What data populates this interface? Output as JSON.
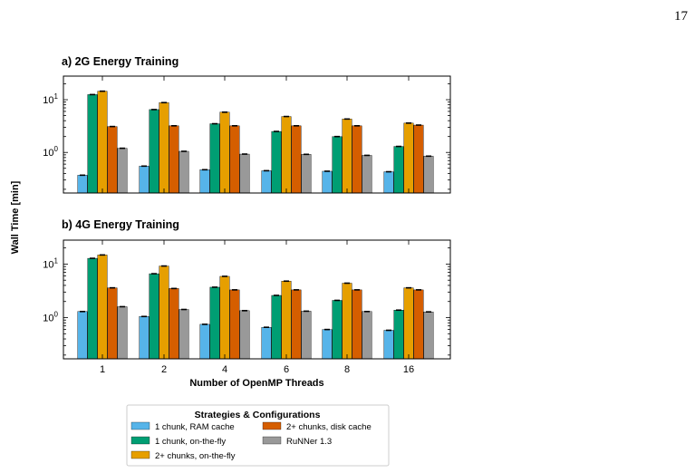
{
  "page_number": "17",
  "chart_data": [
    {
      "type": "bar",
      "title": "a) 2G Energy Training",
      "xlabel": "",
      "ylabel": "Wall Time [min]",
      "yscale": "log",
      "ylim": [
        0.17,
        28
      ],
      "yticks": [
        {
          "value": 1,
          "label": "10",
          "exp": "0"
        },
        {
          "value": 10,
          "label": "10",
          "exp": "1"
        }
      ],
      "categories": [
        "1",
        "2",
        "4",
        "6",
        "8",
        "16"
      ],
      "series": [
        {
          "name": "1 chunk, RAM cache",
          "color": "#56B4E9",
          "values": [
            0.37,
            0.55,
            0.47,
            0.45,
            0.44,
            0.43
          ]
        },
        {
          "name": "1 chunk, on-the-fly",
          "color": "#009E73",
          "values": [
            12.5,
            6.5,
            3.5,
            2.5,
            2.0,
            1.3
          ]
        },
        {
          "name": "2+ chunks, on-the-fly",
          "color": "#E69F00",
          "values": [
            14.5,
            8.8,
            5.8,
            4.8,
            4.3,
            3.6
          ]
        },
        {
          "name": "2+ chunks, disk cache",
          "color": "#D55E00",
          "values": [
            3.1,
            3.2,
            3.2,
            3.2,
            3.2,
            3.3
          ]
        },
        {
          "name": "RuNNer 1.3",
          "color": "#999999",
          "values": [
            1.2,
            1.05,
            0.93,
            0.92,
            0.88,
            0.85
          ]
        }
      ],
      "grid": false,
      "legend": "bottom"
    },
    {
      "type": "bar",
      "title": "b) 4G Energy Training",
      "xlabel": "Number of OpenMP Threads",
      "ylabel": "Wall Time [min]",
      "yscale": "log",
      "ylim": [
        0.17,
        28
      ],
      "yticks": [
        {
          "value": 1,
          "label": "10",
          "exp": "0"
        },
        {
          "value": 10,
          "label": "10",
          "exp": "1"
        }
      ],
      "categories": [
        "1",
        "2",
        "4",
        "6",
        "8",
        "16"
      ],
      "series": [
        {
          "name": "1 chunk, RAM cache",
          "color": "#56B4E9",
          "values": [
            1.3,
            1.05,
            0.75,
            0.66,
            0.6,
            0.58
          ]
        },
        {
          "name": "1 chunk, on-the-fly",
          "color": "#009E73",
          "values": [
            12.8,
            6.6,
            3.7,
            2.6,
            2.1,
            1.38
          ]
        },
        {
          "name": "2+ chunks, on-the-fly",
          "color": "#E69F00",
          "values": [
            14.8,
            9.2,
            5.9,
            4.8,
            4.4,
            3.6
          ]
        },
        {
          "name": "2+ chunks, disk cache",
          "color": "#D55E00",
          "values": [
            3.6,
            3.5,
            3.3,
            3.3,
            3.3,
            3.3
          ]
        },
        {
          "name": "RuNNer 1.3",
          "color": "#999999",
          "values": [
            1.6,
            1.42,
            1.35,
            1.32,
            1.3,
            1.28
          ]
        }
      ],
      "grid": false,
      "legend": "bottom"
    }
  ],
  "legend": {
    "title": "Strategies & Configurations",
    "items": [
      "1 chunk, RAM cache",
      "1 chunk, on-the-fly",
      "2+ chunks, on-the-fly",
      "2+ chunks, disk cache",
      "RuNNer 1.3"
    ]
  }
}
